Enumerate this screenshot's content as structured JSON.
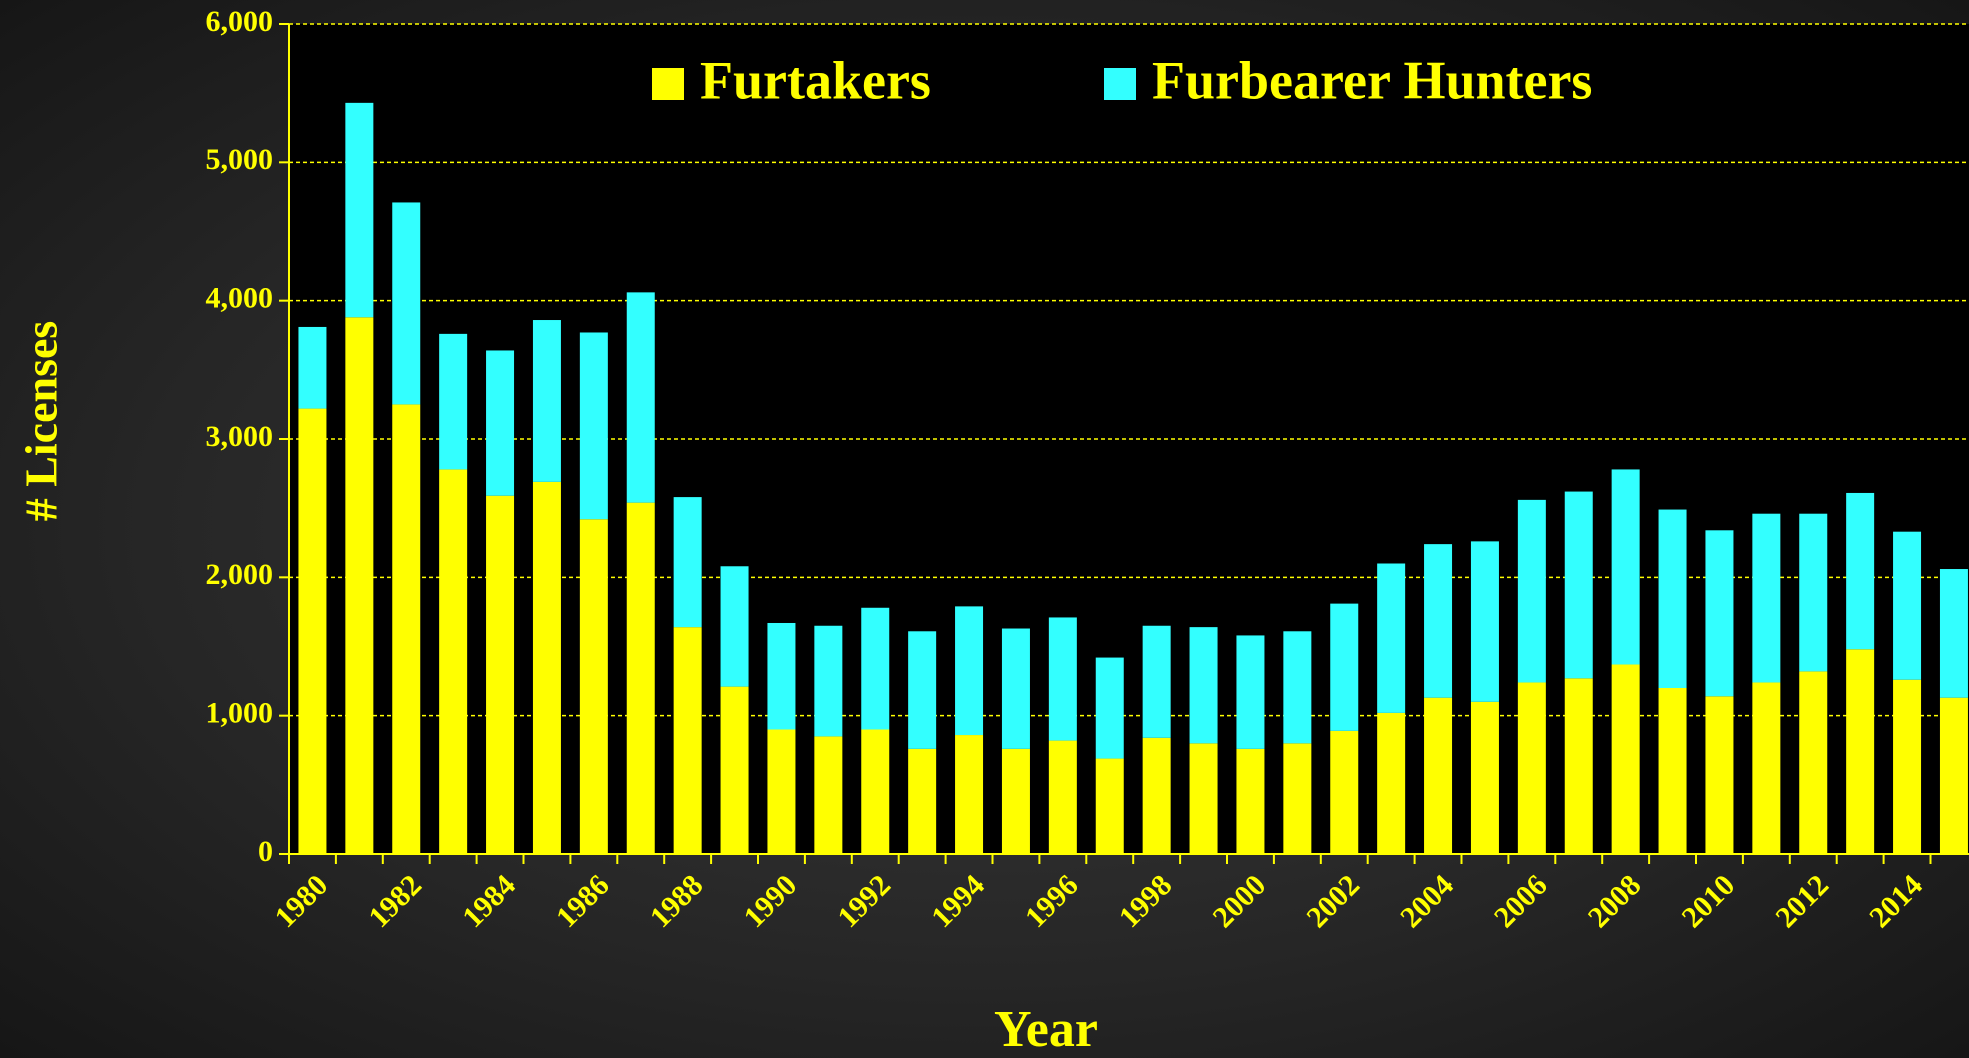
{
  "chart_data": {
    "type": "stacked_bar",
    "x_label": "Year",
    "y_label": "# Licenses",
    "categories": [
      "1980",
      null,
      "1982",
      null,
      "1984",
      null,
      "1986",
      null,
      "1988",
      null,
      "1990",
      null,
      "1992",
      null,
      "1994",
      null,
      "1996",
      null,
      "1998",
      null,
      "2000",
      null,
      "2002",
      null,
      "2004",
      null,
      "2006",
      null,
      "2008",
      null,
      "2010",
      null,
      "2012",
      null,
      "2014",
      null
    ],
    "series": [
      {
        "name": "Furtakers",
        "color": "#ffff00",
        "values": [
          3220,
          3880,
          3250,
          2780,
          2590,
          2690,
          2420,
          2540,
          1640,
          1210,
          900,
          850,
          900,
          760,
          860,
          760,
          820,
          690,
          840,
          800,
          760,
          800,
          890,
          1020,
          1130,
          1100,
          1240,
          1270,
          1370,
          1200,
          1140,
          1240,
          1320,
          1480,
          1260,
          1130
        ]
      },
      {
        "name": "Furbearer Hunters",
        "color": "#33ffff",
        "values": [
          590,
          1550,
          1460,
          980,
          1050,
          1170,
          1350,
          1520,
          940,
          870,
          770,
          800,
          880,
          850,
          930,
          870,
          890,
          730,
          810,
          840,
          820,
          810,
          920,
          1080,
          1110,
          1160,
          1320,
          1350,
          1410,
          1290,
          1200,
          1220,
          1140,
          1130,
          1070,
          930
        ]
      }
    ],
    "ylim": [
      0,
      6000
    ],
    "yticks": [
      0,
      {
        "value": 1000,
        "label": "1,000"
      },
      {
        "value": 2000,
        "label": "2,000"
      },
      {
        "value": 3000,
        "label": "3,000"
      },
      {
        "value": 4000,
        "label": "4,000"
      },
      {
        "value": 5000,
        "label": "5,000"
      },
      {
        "value": 6000,
        "label": "6,000"
      }
    ],
    "grid": true
  }
}
